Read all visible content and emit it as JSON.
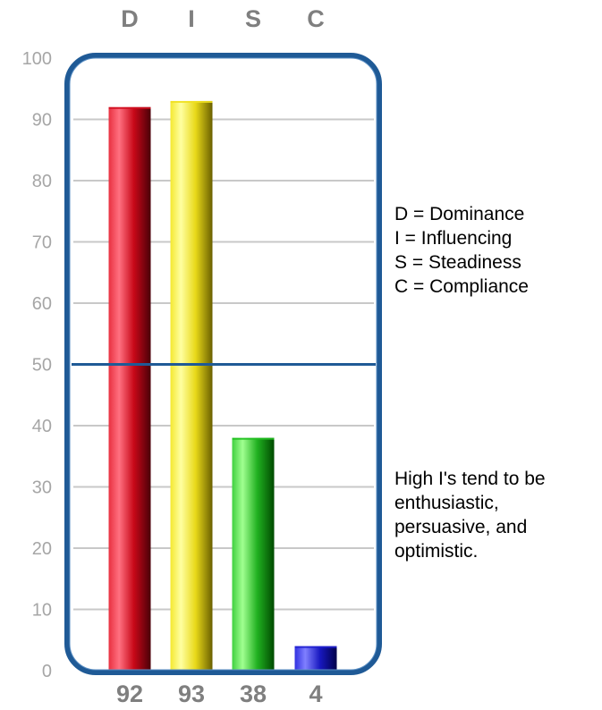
{
  "chart_data": {
    "type": "bar",
    "categories": [
      "D",
      "I",
      "S",
      "C"
    ],
    "values": [
      92,
      93,
      38,
      4
    ],
    "value_labels": [
      "92",
      "93",
      "38",
      "4"
    ],
    "ylim": [
      0,
      100
    ],
    "yticks": [
      "0",
      "10",
      "20",
      "30",
      "40",
      "50",
      "60",
      "70",
      "80",
      "90",
      "100"
    ],
    "midline": 50,
    "grid": true,
    "colors": {
      "D": "#d01020",
      "I": "#f0e020",
      "S": "#20c020",
      "C": "#2020d0",
      "frame": "#1f5a96",
      "grid": "#c8c8c8",
      "labels": "#7f7f7f",
      "ticks": "#a6a6a6"
    }
  },
  "legend": {
    "lines": [
      "D = Dominance",
      "I = Influencing",
      "S = Steadiness",
      "C = Compliance"
    ]
  },
  "description": {
    "lines": [
      "High I's tend to be",
      "enthusiastic,",
      "persuasive, and",
      "optimistic."
    ]
  }
}
